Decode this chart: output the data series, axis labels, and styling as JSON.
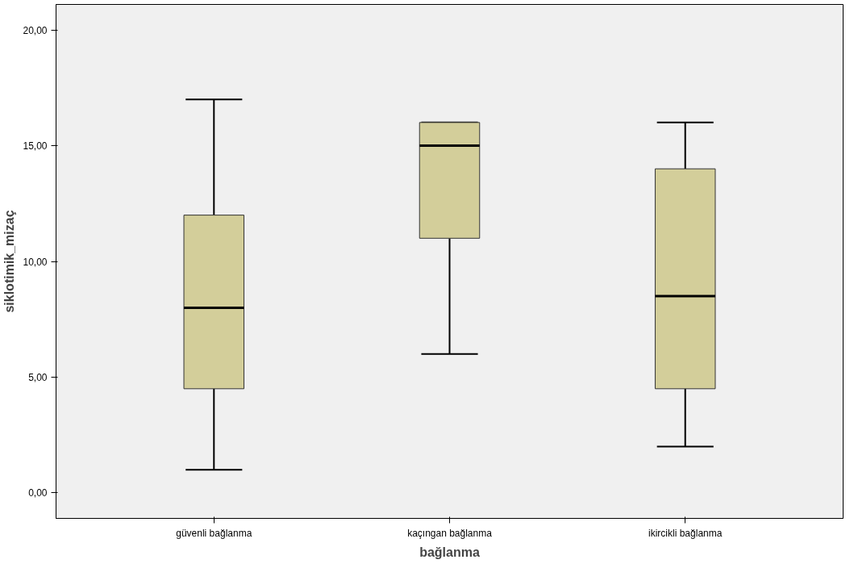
{
  "chart_data": {
    "type": "box",
    "xlabel": "bağlanma",
    "ylabel": "siklotimik_mizaç",
    "categories": [
      "güvenli bağlanma",
      "kaçıngan bağlanma",
      "ikircikli bağlanma"
    ],
    "boxes": [
      {
        "low": 1,
        "q1": 4.5,
        "median": 8,
        "q3": 12,
        "high": 17
      },
      {
        "low": 6,
        "q1": 11,
        "median": 15,
        "q3": 16,
        "high": 16
      },
      {
        "low": 2,
        "q1": 4.5,
        "median": 8.5,
        "q3": 14,
        "high": 16
      }
    ],
    "color": "#d3ce9a",
    "ylim": [
      -1.1,
      21.1
    ],
    "yticks": [
      {
        "value": 0,
        "label": "0,00"
      },
      {
        "value": 5,
        "label": "5,00"
      },
      {
        "value": 10,
        "label": "10,00"
      },
      {
        "value": 15,
        "label": "15,00"
      },
      {
        "value": 20,
        "label": "20,00"
      }
    ],
    "grid": false
  }
}
